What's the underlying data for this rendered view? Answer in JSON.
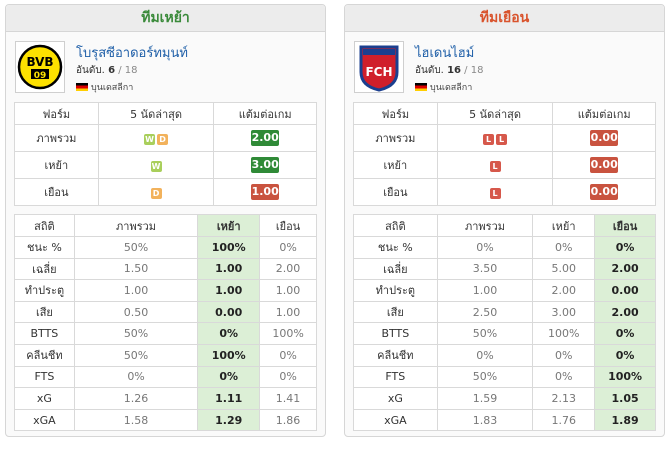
{
  "home": {
    "header": "ทีมเหย้า",
    "team_name": "โบรุสซีอาดอร์ทมุนท์",
    "rank_label": "อันดับ.",
    "rank": "6",
    "rank_total": "/ 18",
    "league": "บุนเดสลีกา",
    "logo_text": "BVB",
    "logo_sub": "09",
    "form_headers": [
      "ฟอร์ม",
      "5 นัดล่าสุด",
      "แต้มต่อเกม"
    ],
    "form_rows": [
      {
        "label": "ภาพรวม",
        "results": [
          "W",
          "D"
        ],
        "ppg": "2.00",
        "ppg_level": "good"
      },
      {
        "label": "เหย้า",
        "results": [
          "W"
        ],
        "ppg": "3.00",
        "ppg_level": "good"
      },
      {
        "label": "เยือน",
        "results": [
          "D"
        ],
        "ppg": "1.00",
        "ppg_level": "bad"
      }
    ],
    "stats_headers": [
      "สถิติ",
      "ภาพรวม",
      "เหย้า",
      "เยือน"
    ],
    "stats_rows": [
      {
        "label": "ชนะ %",
        "values": [
          "50%",
          "100%",
          "0%"
        ]
      },
      {
        "label": "เฉลี่ย",
        "values": [
          "1.50",
          "1.00",
          "2.00"
        ]
      },
      {
        "label": "ทำประตู",
        "values": [
          "1.00",
          "1.00",
          "1.00"
        ]
      },
      {
        "label": "เสีย",
        "values": [
          "0.50",
          "0.00",
          "1.00"
        ]
      },
      {
        "label": "BTTS",
        "values": [
          "50%",
          "0%",
          "100%"
        ]
      },
      {
        "label": "คลีนชีท",
        "values": [
          "50%",
          "100%",
          "0%"
        ]
      },
      {
        "label": "FTS",
        "values": [
          "0%",
          "0%",
          "0%"
        ]
      },
      {
        "label": "xG",
        "values": [
          "1.26",
          "1.11",
          "1.41"
        ]
      },
      {
        "label": "xGA",
        "values": [
          "1.58",
          "1.29",
          "1.86"
        ]
      }
    ]
  },
  "away": {
    "header": "ทีมเยือน",
    "team_name": "ไฮเดนไฮม์",
    "rank_label": "อันดับ.",
    "rank": "16",
    "rank_total": "/ 18",
    "league": "บุนเดสลีกา",
    "logo_text": "FCH",
    "form_headers": [
      "ฟอร์ม",
      "5 นัดล่าสุด",
      "แต้มต่อเกม"
    ],
    "form_rows": [
      {
        "label": "ภาพรวม",
        "results": [
          "L",
          "L"
        ],
        "ppg": "0.00",
        "ppg_level": "bad"
      },
      {
        "label": "เหย้า",
        "results": [
          "L"
        ],
        "ppg": "0.00",
        "ppg_level": "bad"
      },
      {
        "label": "เยือน",
        "results": [
          "L"
        ],
        "ppg": "0.00",
        "ppg_level": "bad"
      }
    ],
    "stats_headers": [
      "สถิติ",
      "ภาพรวม",
      "เหย้า",
      "เยือน"
    ],
    "stats_rows": [
      {
        "label": "ชนะ %",
        "values": [
          "0%",
          "0%",
          "0%"
        ]
      },
      {
        "label": "เฉลี่ย",
        "values": [
          "3.50",
          "5.00",
          "2.00"
        ]
      },
      {
        "label": "ทำประตู",
        "values": [
          "1.00",
          "2.00",
          "0.00"
        ]
      },
      {
        "label": "เสีย",
        "values": [
          "2.50",
          "3.00",
          "2.00"
        ]
      },
      {
        "label": "BTTS",
        "values": [
          "50%",
          "100%",
          "0%"
        ]
      },
      {
        "label": "คลีนชีท",
        "values": [
          "0%",
          "0%",
          "0%"
        ]
      },
      {
        "label": "FTS",
        "values": [
          "50%",
          "0%",
          "100%"
        ]
      },
      {
        "label": "xG",
        "values": [
          "1.59",
          "2.13",
          "1.05"
        ]
      },
      {
        "label": "xGA",
        "values": [
          "1.83",
          "1.76",
          "1.89"
        ]
      }
    ]
  },
  "colors": {
    "home_header": "#3a8a3a",
    "away_header": "#d9532c",
    "win": "#a9cf5b",
    "draw": "#f2b25c",
    "loss": "#d6584b",
    "ppg_good": "#2f8a37",
    "ppg_bad": "#c9533f",
    "highlight": "#dcefd6"
  }
}
